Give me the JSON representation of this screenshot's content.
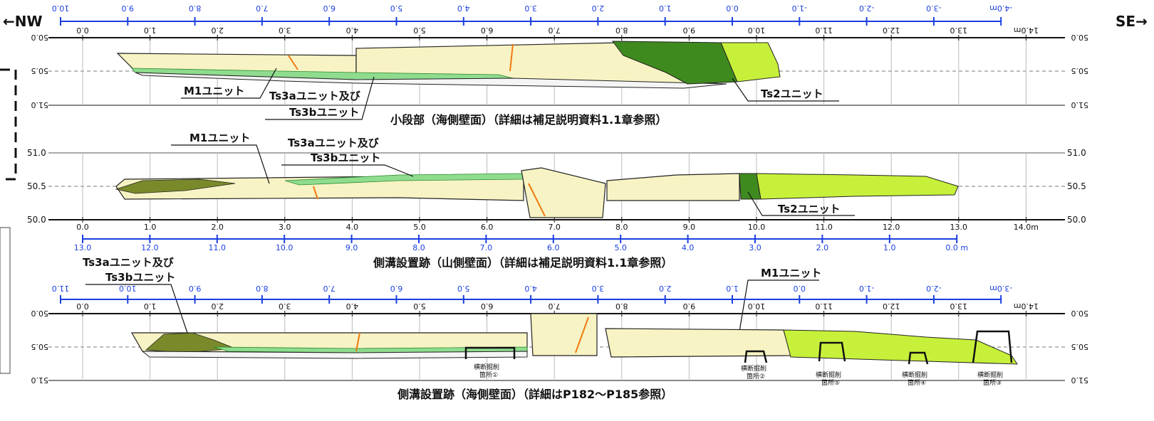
{
  "directions": {
    "left": "←NW",
    "right": "SE→"
  },
  "panels": [
    {
      "id": "p1",
      "caption": "小段部（海側壁面）（詳細は補足説明資料1.1章参照）",
      "black_ticks": [
        "0.0",
        "1.0",
        "2.0",
        "3.0",
        "4.0",
        "5.0",
        "6.0",
        "7.0",
        "8.0",
        "9.0",
        "10.0",
        "11.0",
        "12.0",
        "13.0",
        "14.0m"
      ],
      "blue_ticks": [
        "10.0",
        "9.0",
        "8.0",
        "7.0",
        "6.0",
        "5.0",
        "4.0",
        "3.0",
        "2.0",
        "1.0",
        "0.0",
        "-1.0",
        "-2.0",
        "-3.0",
        "-4.0m"
      ],
      "elev_left": [
        "50.0",
        "50.5",
        "51.0"
      ],
      "elev_right": [
        "50.0",
        "50.5",
        "51.0"
      ],
      "labels": {
        "m1": "M1ユニット",
        "ts3a": "Ts3aユニット及び",
        "ts3b": "Ts3bユニット",
        "ts2": "Ts2ユニット"
      }
    },
    {
      "id": "p2",
      "caption": "側溝設置跡（山側壁面）（詳細は補足説明資料1.1章参照）",
      "black_ticks": [
        "0.0",
        "1.0",
        "2.0",
        "3.0",
        "4.0",
        "5.0",
        "6.0",
        "7.0",
        "8.0",
        "9.0",
        "10.0",
        "11.0",
        "12.0",
        "13.0",
        "14.0m"
      ],
      "blue_ticks": [
        "13.0",
        "12.0",
        "11.0",
        "10.0",
        "9.0",
        "8.0",
        "7.0",
        "6.0",
        "5.0",
        "4.0",
        "3.0",
        "2.0",
        "1.0",
        "0.0 m"
      ],
      "elev_left": [
        "51.0",
        "50.5",
        "50.0"
      ],
      "elev_right": [
        "51.0",
        "50.5",
        "50.0"
      ],
      "labels": {
        "m1": "M1ユニット",
        "ts3a": "Ts3aユニット及び",
        "ts3b": "Ts3bユニット",
        "ts2": "Ts2ユニット"
      }
    },
    {
      "id": "p3",
      "caption": "側溝設置跡（海側壁面）（詳細はP182～P185参照）",
      "black_ticks": [
        "0.0",
        "1.0",
        "2.0",
        "3.0",
        "4.0",
        "5.0",
        "6.0",
        "7.0",
        "8.0",
        "9.0",
        "10.0",
        "11.0",
        "12.0",
        "13.0",
        "14.0m"
      ],
      "blue_ticks": [
        "11.0",
        "10.0",
        "9.0",
        "8.0",
        "7.0",
        "6.0",
        "5.0",
        "4.0",
        "3.0",
        "2.0",
        "1.0",
        "0.0",
        "-1.0",
        "-2.0",
        "-3.0m"
      ],
      "elev_left": [
        "50.0",
        "50.5",
        "51.0"
      ],
      "elev_right": [
        "50.0",
        "50.5",
        "51.0"
      ],
      "labels": {
        "ts3a": "Ts3aユニット及び",
        "ts3b": "Ts3bユニット",
        "m1": "M1ユニット"
      },
      "trenches": [
        {
          "line1": "横断掘削",
          "line2": "箇所①"
        },
        {
          "line1": "横断掘削",
          "line2": "箇所②"
        },
        {
          "line1": "横断掘削",
          "line2": "箇所⑤"
        },
        {
          "line1": "横断掘削",
          "line2": "箇所④"
        },
        {
          "line1": "横断掘削",
          "line2": "箇所③"
        }
      ]
    }
  ],
  "colors": {
    "m1": "#f7f3c4",
    "ts3": "#8fdc8f",
    "ts2_dark": "#3f8a1e",
    "ts2_light": "#c7f03a",
    "dark_olive": "#7a8a2a",
    "scale_blue": "#1a3fe0",
    "fault_orange": "#f07a10"
  }
}
